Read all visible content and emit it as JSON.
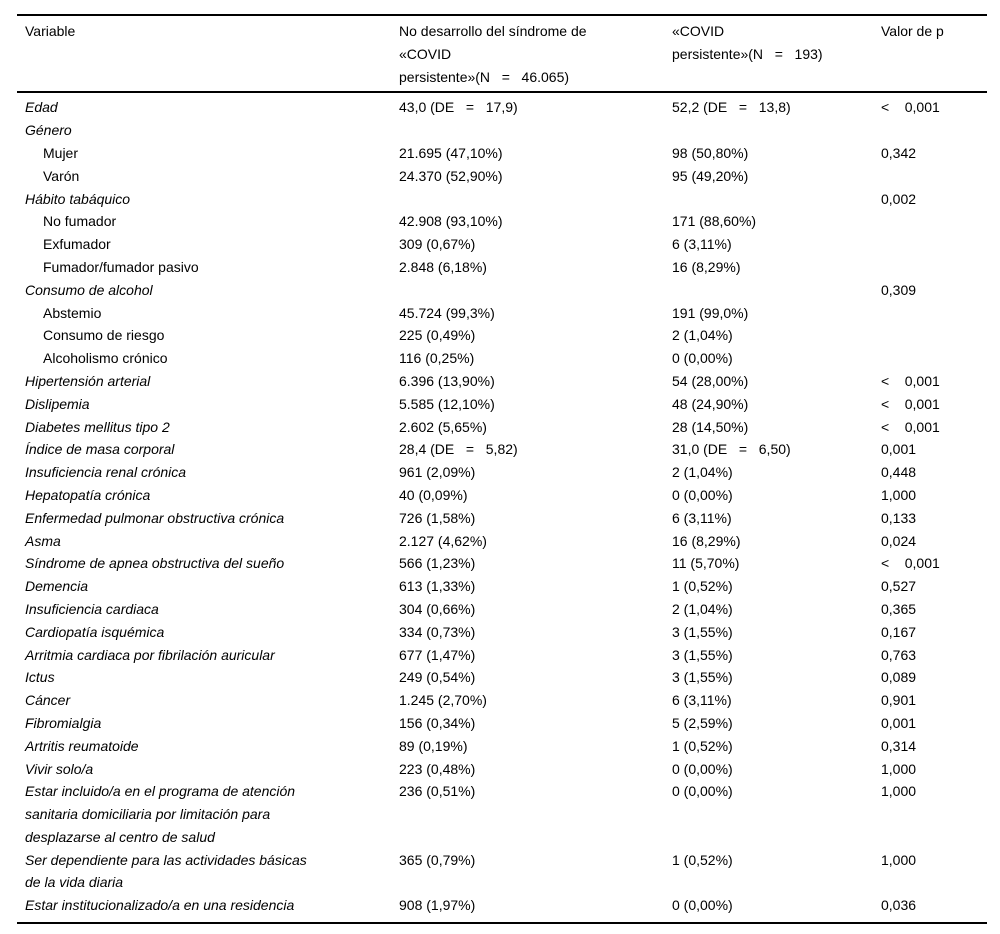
{
  "table": {
    "headers": {
      "variable": "Variable",
      "no_covid": "No desarrollo del síndrome de\n«COVID\npersistente»(N   =   46.065)",
      "covid": "«COVID\npersistente»(N   =   193)",
      "p_value": "Valor de p"
    },
    "rows": [
      {
        "label": "Edad",
        "italic": true,
        "indent": false,
        "no_covid": "43,0 (DE   =   17,9)",
        "covid": "52,2 (DE   =   13,8)",
        "p": "<    0,001"
      },
      {
        "label": "Género",
        "italic": true,
        "indent": false,
        "no_covid": "",
        "covid": "",
        "p": ""
      },
      {
        "label": "Mujer",
        "italic": false,
        "indent": true,
        "no_covid": "21.695 (47,10%)",
        "covid": "98 (50,80%)",
        "p": "0,342"
      },
      {
        "label": "Varón",
        "italic": false,
        "indent": true,
        "no_covid": "24.370 (52,90%)",
        "covid": "95 (49,20%)",
        "p": ""
      },
      {
        "label": "Hábito tabáquico",
        "italic": true,
        "indent": false,
        "no_covid": "",
        "covid": "",
        "p": "0,002"
      },
      {
        "label": "No fumador",
        "italic": false,
        "indent": true,
        "no_covid": "42.908 (93,10%)",
        "covid": "171 (88,60%)",
        "p": ""
      },
      {
        "label": "Exfumador",
        "italic": false,
        "indent": true,
        "no_covid": "309 (0,67%)",
        "covid": "6 (3,11%)",
        "p": ""
      },
      {
        "label": "Fumador/fumador pasivo",
        "italic": false,
        "indent": true,
        "no_covid": "2.848 (6,18%)",
        "covid": "16 (8,29%)",
        "p": ""
      },
      {
        "label": "Consumo de alcohol",
        "italic": true,
        "indent": false,
        "no_covid": "",
        "covid": "",
        "p": "0,309"
      },
      {
        "label": "Abstemio",
        "italic": false,
        "indent": true,
        "no_covid": "45.724 (99,3%)",
        "covid": "191 (99,0%)",
        "p": ""
      },
      {
        "label": "Consumo de riesgo",
        "italic": false,
        "indent": true,
        "no_covid": "225 (0,49%)",
        "covid": "2 (1,04%)",
        "p": ""
      },
      {
        "label": "Alcoholismo crónico",
        "italic": false,
        "indent": true,
        "no_covid": "116 (0,25%)",
        "covid": "0 (0,00%)",
        "p": ""
      },
      {
        "label": "Hipertensión arterial",
        "italic": true,
        "indent": false,
        "no_covid": "6.396 (13,90%)",
        "covid": "54 (28,00%)",
        "p": "<    0,001"
      },
      {
        "label": "Dislipemia",
        "italic": true,
        "indent": false,
        "no_covid": "5.585 (12,10%)",
        "covid": "48 (24,90%)",
        "p": "<    0,001"
      },
      {
        "label": "Diabetes mellitus tipo 2",
        "italic": true,
        "indent": false,
        "no_covid": "2.602 (5,65%)",
        "covid": "28 (14,50%)",
        "p": "<    0,001"
      },
      {
        "label": "Índice de masa corporal",
        "italic": true,
        "indent": false,
        "no_covid": "28,4 (DE   =   5,82)",
        "covid": "31,0 (DE   =   6,50)",
        "p": "0,001"
      },
      {
        "label": "Insuficiencia renal crónica",
        "italic": true,
        "indent": false,
        "no_covid": "961 (2,09%)",
        "covid": "2 (1,04%)",
        "p": "0,448"
      },
      {
        "label": "Hepatopatía crónica",
        "italic": true,
        "indent": false,
        "no_covid": "40 (0,09%)",
        "covid": "0 (0,00%)",
        "p": "1,000"
      },
      {
        "label": "Enfermedad pulmonar obstructiva crónica",
        "italic": true,
        "indent": false,
        "no_covid": "726 (1,58%)",
        "covid": "6 (3,11%)",
        "p": "0,133"
      },
      {
        "label": "Asma",
        "italic": true,
        "indent": false,
        "no_covid": "2.127 (4,62%)",
        "covid": "16 (8,29%)",
        "p": "0,024"
      },
      {
        "label": "Síndrome de apnea obstructiva del sueño",
        "italic": true,
        "indent": false,
        "no_covid": "566 (1,23%)",
        "covid": "11 (5,70%)",
        "p": "<    0,001"
      },
      {
        "label": "Demencia",
        "italic": true,
        "indent": false,
        "no_covid": "613 (1,33%)",
        "covid": "1 (0,52%)",
        "p": "0,527"
      },
      {
        "label": "Insuficiencia cardiaca",
        "italic": true,
        "indent": false,
        "no_covid": "304 (0,66%)",
        "covid": "2 (1,04%)",
        "p": "0,365"
      },
      {
        "label": "Cardiopatía isquémica",
        "italic": true,
        "indent": false,
        "no_covid": "334 (0,73%)",
        "covid": "3 (1,55%)",
        "p": "0,167"
      },
      {
        "label": "Arritmia cardiaca por fibrilación auricular",
        "italic": true,
        "indent": false,
        "no_covid": "677 (1,47%)",
        "covid": "3 (1,55%)",
        "p": "0,763"
      },
      {
        "label": "Ictus",
        "italic": true,
        "indent": false,
        "no_covid": "249 (0,54%)",
        "covid": "3 (1,55%)",
        "p": "0,089"
      },
      {
        "label": "Cáncer",
        "italic": true,
        "indent": false,
        "no_covid": "1.245 (2,70%)",
        "covid": "6 (3,11%)",
        "p": "0,901"
      },
      {
        "label": "Fibromialgia",
        "italic": true,
        "indent": false,
        "no_covid": "156 (0,34%)",
        "covid": "5 (2,59%)",
        "p": "0,001"
      },
      {
        "label": "Artritis reumatoide",
        "italic": true,
        "indent": false,
        "no_covid": "89 (0,19%)",
        "covid": "1 (0,52%)",
        "p": "0,314"
      },
      {
        "label": "Vivir solo/a",
        "italic": true,
        "indent": false,
        "no_covid": "223 (0,48%)",
        "covid": "0 (0,00%)",
        "p": "1,000"
      },
      {
        "label": "Estar incluido/a en el programa de atención\nsanitaria domiciliaria por limitación para\ndesplazarse al centro de salud",
        "italic": true,
        "indent": false,
        "no_covid": "236 (0,51%)",
        "covid": "0 (0,00%)",
        "p": "1,000"
      },
      {
        "label": "Ser dependiente para las actividades básicas\nde la vida diaria",
        "italic": true,
        "indent": false,
        "no_covid": "365 (0,79%)",
        "covid": "1 (0,52%)",
        "p": "1,000"
      },
      {
        "label": "Estar institucionalizado/a en una residencia",
        "italic": true,
        "indent": false,
        "no_covid": "908 (1,97%)",
        "covid": "0 (0,00%)",
        "p": "0,036"
      }
    ]
  }
}
